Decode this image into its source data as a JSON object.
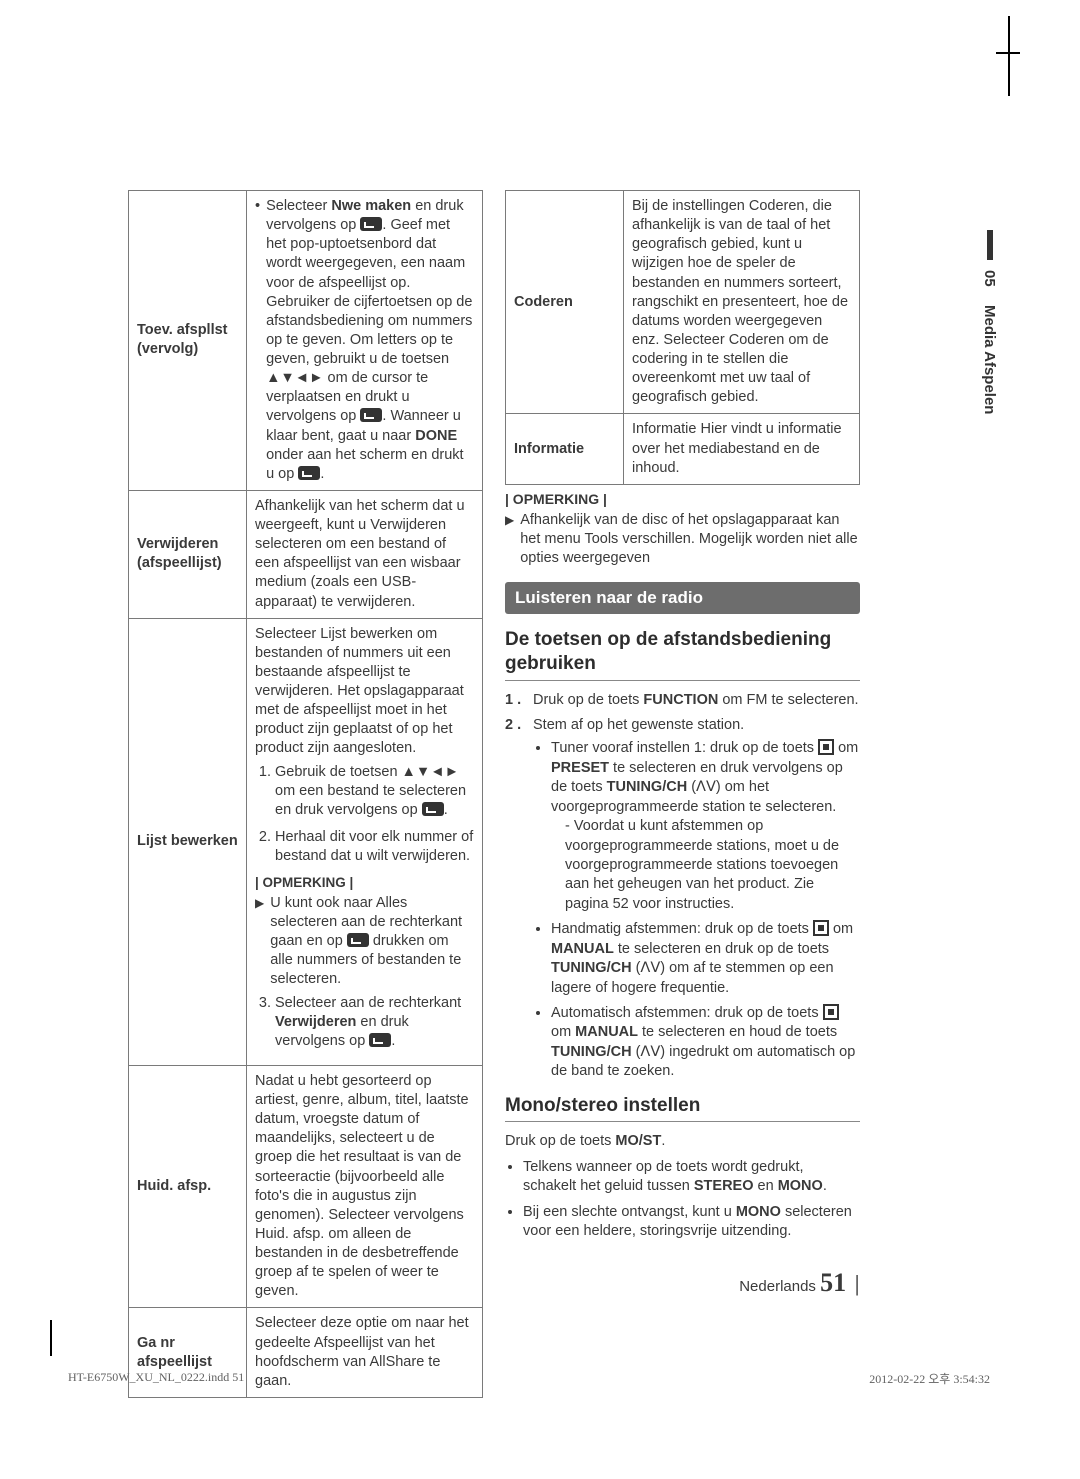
{
  "side_tab": {
    "num": "05",
    "label": "Media Afspelen"
  },
  "left_table": {
    "rows": [
      {
        "label": "Toev. afspllst\n(vervolg)",
        "body_parts": [
          "Selecteer ",
          {
            "bold": "Nwe maken"
          },
          " en druk vervolgens op ",
          {
            "icon": "enter"
          },
          ". Geef met het pop-uptoetsenbord dat wordt weergegeven, een naam voor de afspeellijst op. Gebruiker de cijfertoetsen op de afstandsbediening om nummers op te geven. Om letters op te geven, gebruikt u de toetsen ▲▼◄► om de cursor te verplaatsen en drukt u vervolgens op ",
          {
            "icon": "enter"
          },
          ". Wanneer u klaar bent, gaat u naar ",
          {
            "bold": "DONE"
          },
          " onder aan het scherm en drukt u op ",
          {
            "icon": "enter"
          },
          "."
        ]
      },
      {
        "label": "Verwijderen\n(afspeellijst)",
        "body": "Afhankelijk van het scherm dat u weergeeft, kunt u Verwijderen selecteren om een bestand of een afspeellijst van een wisbaar medium (zoals een USB-apparaat) te verwijderen."
      },
      {
        "label": "Lijst bewerken",
        "intro": "Selecteer Lijst bewerken om bestanden of nummers uit een bestaande afspeellijst te verwijderen. Het opslagapparaat met de afspeellijst moet in het product zijn geplaatst of op het product zijn aangesloten.",
        "steps": [
          "Gebruik de toetsen ▲▼◄► om een bestand te selecteren en druk vervolgens op {enter}.",
          "Herhaal dit voor elk nummer of bestand dat u wilt verwijderen.",
          "Selecteer aan de rechterkant {bold:Verwijderen} en druk vervolgens op {enter}."
        ],
        "note_hdr": "| OPMERKING |",
        "note": "U kunt ook naar Alles selecteren aan de rechterkant gaan en op {enter} drukken om alle nummers of bestanden te selecteren."
      },
      {
        "label": "Huid. afsp.",
        "body": "Nadat u hebt gesorteerd op artiest, genre, album, titel, laatste datum, vroegste datum of maandelijks, selecteert u de groep die het resultaat is van de sorteeractie (bijvoorbeeld alle foto's die in augustus zijn genomen). Selecteer vervolgens Huid. afsp. om alleen de bestanden in de desbetreffende groep af te spelen of weer te geven."
      },
      {
        "label": "Ga nr\nafspeellijst",
        "body": "Selecteer deze optie om naar het gedeelte Afspeellijst van het hoofdscherm van AllShare te gaan."
      }
    ]
  },
  "right_table": {
    "rows": [
      {
        "label": "Coderen",
        "body": "Bij de instellingen Coderen, die afhankelijk is van de taal of het geografisch gebied, kunt u wijzigen hoe de speler de bestanden en nummers sorteert, rangschikt en presenteert, hoe de datums worden weergegeven enz. Selecteer Coderen om de codering in te stellen die overeenkomt met uw taal of geografisch gebied."
      },
      {
        "label": "Informatie",
        "body": "Informatie Hier vindt u informatie over het mediabestand en de inhoud."
      }
    ]
  },
  "right_note_hdr": "| OPMERKING |",
  "right_note": "Afhankelijk van de disc of het opslagapparaat kan het menu Tools verschillen. Mogelijk worden niet alle opties weergegeven",
  "section_bar": "Luisteren naar de radio",
  "sub1": "De toetsen op de afstandsbediening gebruiken",
  "steps_main": [
    {
      "n": "1 .",
      "parts": [
        "Druk op de toets ",
        {
          "bold": "FUNCTION"
        },
        " om FM te selecteren."
      ]
    },
    {
      "n": "2 .",
      "parts": [
        "Stem af op het gewenste station."
      ],
      "bullets": [
        {
          "parts": [
            "Tuner vooraf instellen 1: druk op de toets ",
            {
              "icon": "stop"
            },
            " om ",
            {
              "bold": "PRESET"
            },
            " te selecteren en druk vervolgens op de toets ",
            {
              "bold": "TUNING/CH"
            },
            " (",
            {
              "updown": true
            },
            ") om het voorgeprogrammeerde station te selecteren."
          ],
          "dash": [
            "Voordat u kunt afstemmen op voorgeprogrammeerde stations, moet u de voorgeprogrammeerde stations toevoegen aan het geheugen van het product. Zie pagina 52 voor instructies."
          ]
        },
        {
          "parts": [
            "Handmatig afstemmen: druk op de toets ",
            {
              "icon": "stop"
            },
            " om ",
            {
              "bold": "MANUAL"
            },
            " te selecteren en druk op de toets ",
            {
              "bold": "TUNING/CH"
            },
            " (",
            {
              "updown": true
            },
            ") om af te stemmen op een lagere of hogere frequentie."
          ]
        },
        {
          "parts": [
            "Automatisch afstemmen: druk op de toets ",
            {
              "icon": "stop"
            },
            " om ",
            {
              "bold": "MANUAL"
            },
            " te selecteren en houd de toets ",
            {
              "bold": "TUNING/CH"
            },
            " (",
            {
              "updown": true
            },
            ") ingedrukt om automatisch op de band te zoeken."
          ]
        }
      ]
    }
  ],
  "sub2": "Mono/stereo instellen",
  "mono_intro_parts": [
    "Druk op de toets ",
    {
      "bold": "MO/ST"
    },
    "."
  ],
  "mono_bullets": [
    {
      "parts": [
        "Telkens wanneer op de toets wordt gedrukt, schakelt het geluid tussen ",
        {
          "bold": "STEREO"
        },
        " en ",
        {
          "bold": "MONO"
        },
        "."
      ]
    },
    {
      "parts": [
        "Bij een slechte ontvangst, kunt u ",
        {
          "bold": "MONO"
        },
        " selecteren voor een heldere, storingsvrije uitzending."
      ]
    }
  ],
  "footer": {
    "lang": "Nederlands",
    "page": "51"
  },
  "print_left": "HT-E6750W_XU_NL_0222.indd   51",
  "print_right": "2012-02-22   오후 3:54:32"
}
